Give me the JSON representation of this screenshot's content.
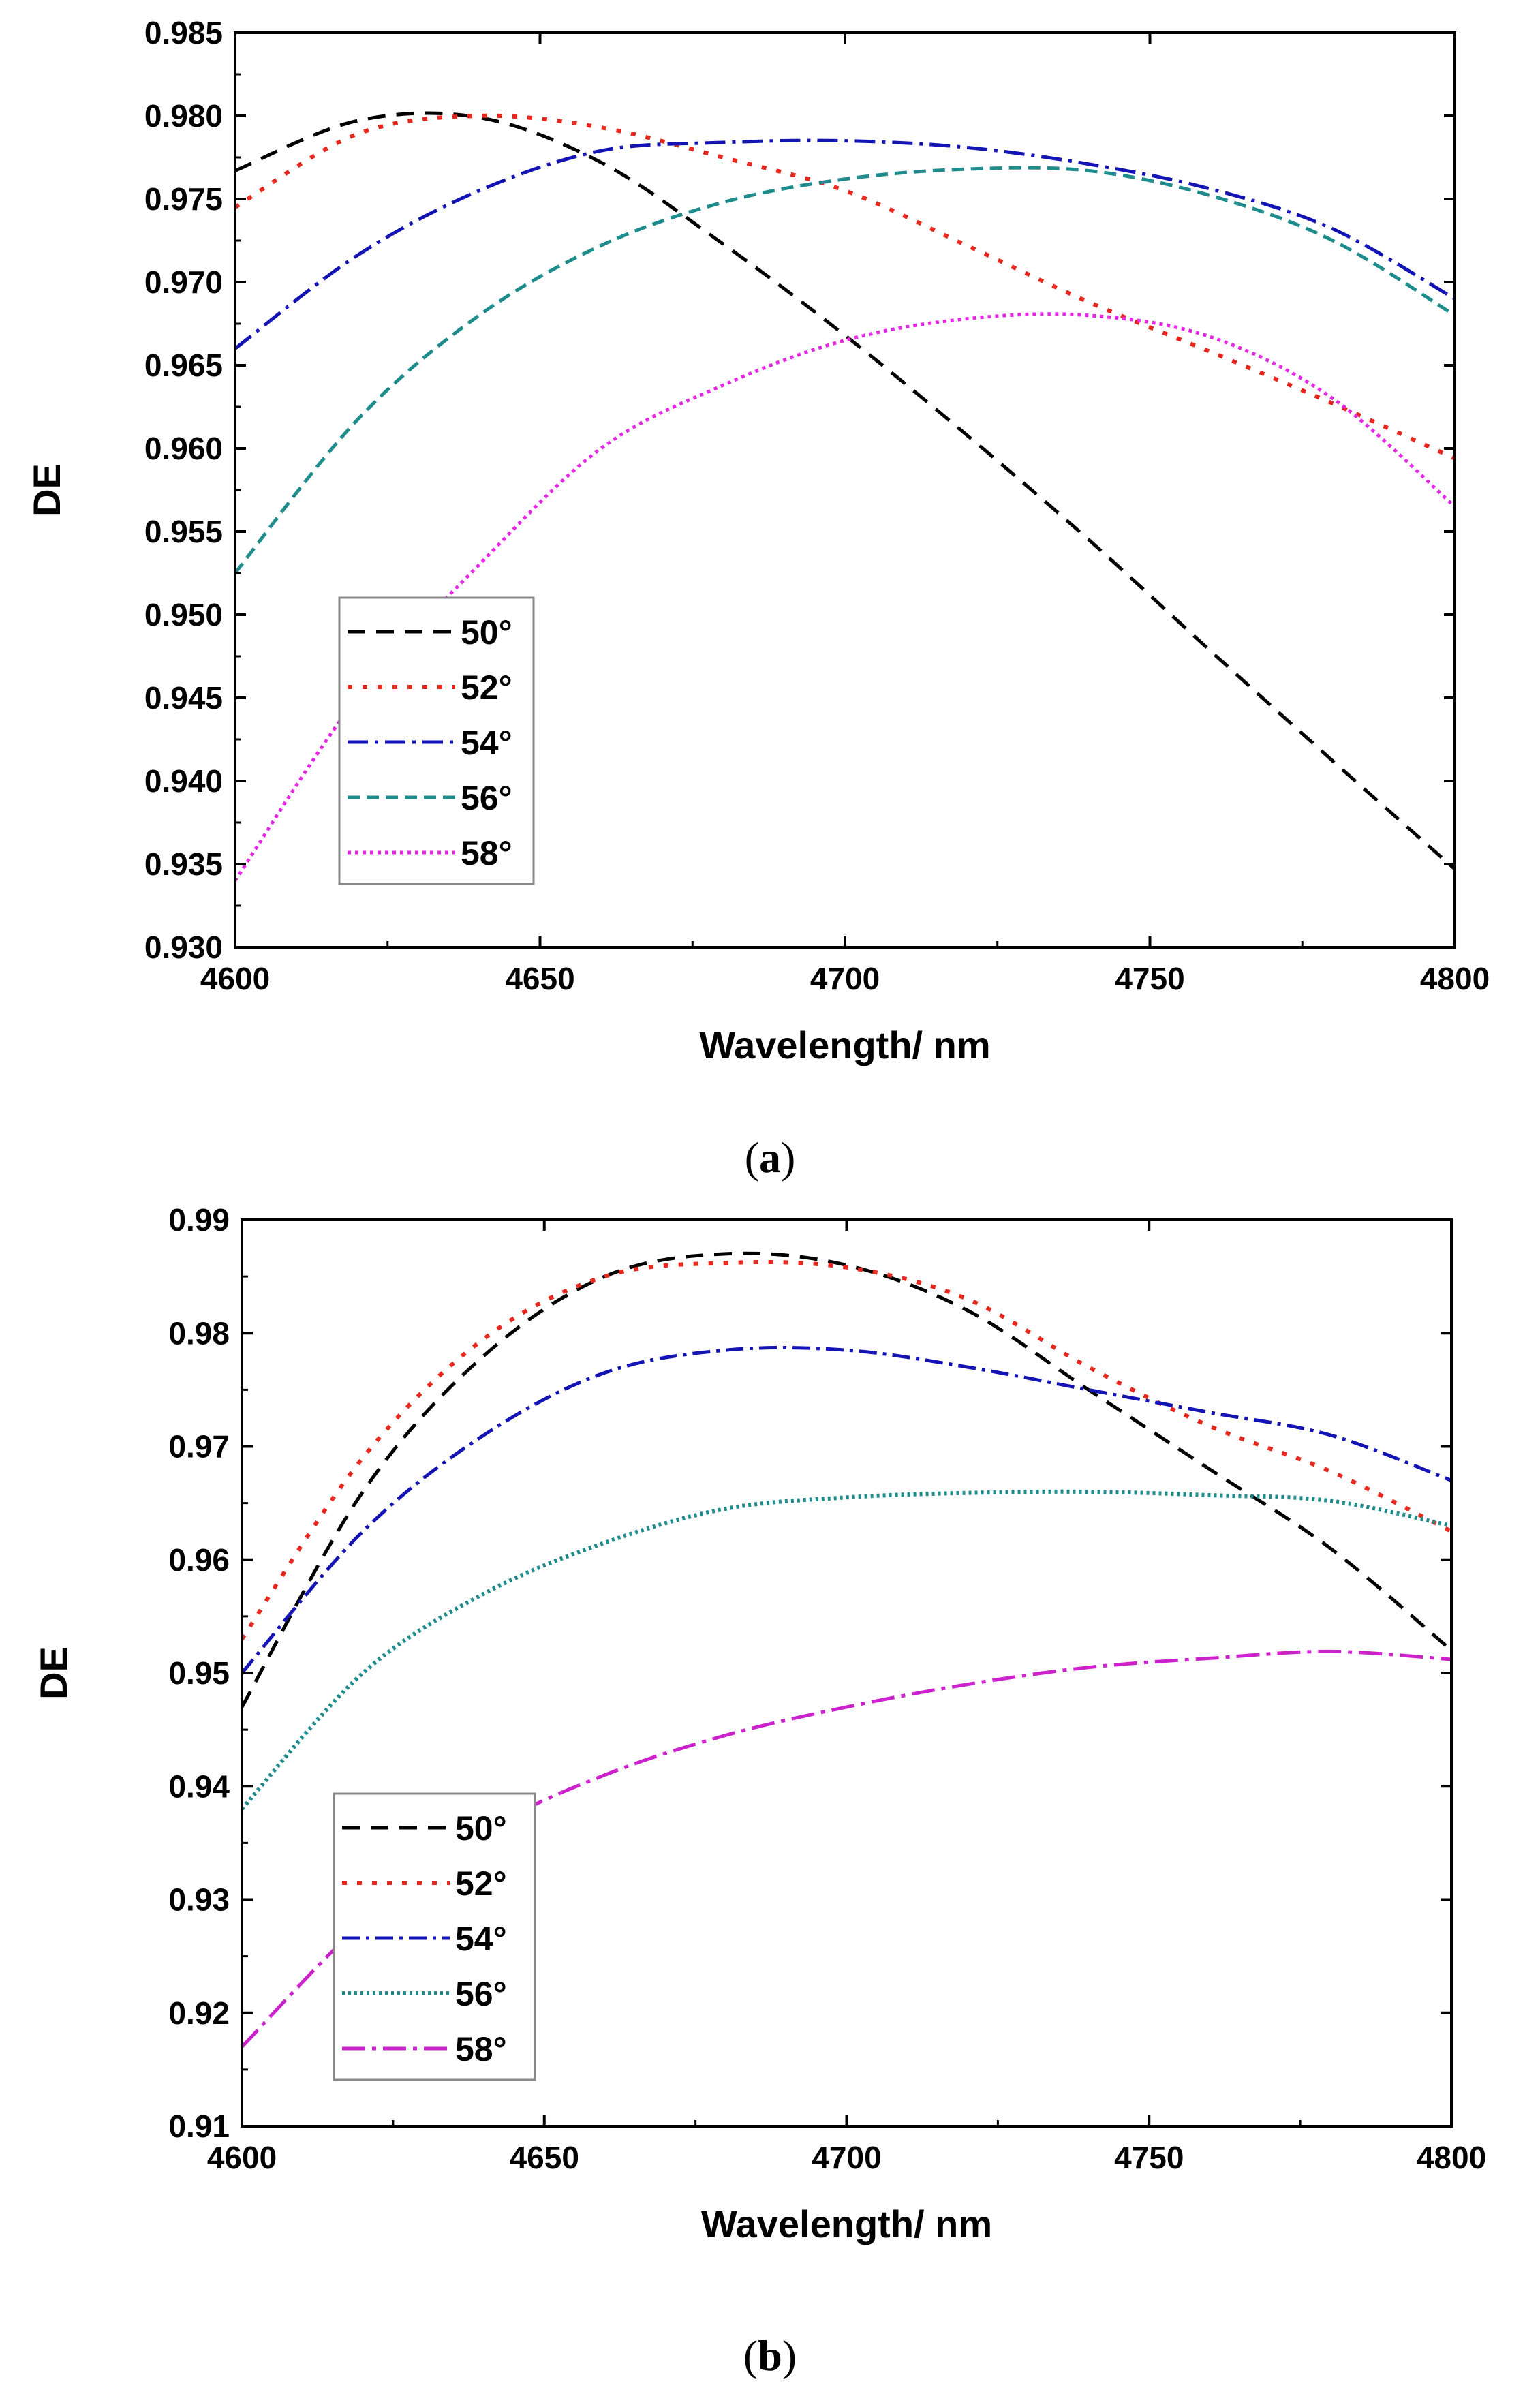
{
  "chart_data": [
    {
      "type": "line",
      "panel": "a",
      "caption_letter": "a",
      "title": "",
      "xlabel": "Wavelength/ nm",
      "ylabel": "DE",
      "xlim": [
        4600,
        4800
      ],
      "ylim": [
        0.93,
        0.985
      ],
      "xticks": [
        4600,
        4650,
        4700,
        4750,
        4800
      ],
      "xtick_labels": [
        "4600",
        "4650",
        "4700",
        "4750",
        "4800"
      ],
      "yticks": [
        0.93,
        0.935,
        0.94,
        0.945,
        0.95,
        0.955,
        0.96,
        0.965,
        0.97,
        0.975,
        0.98,
        0.985
      ],
      "ytick_labels": [
        "0.930",
        "0.935",
        "0.940",
        "0.945",
        "0.950",
        "0.955",
        "0.960",
        "0.965",
        "0.970",
        "0.975",
        "0.980",
        "0.985"
      ],
      "grid": false,
      "legend_position": "bottom-left",
      "x": [
        4600,
        4620,
        4640,
        4660,
        4680,
        4700,
        4720,
        4740,
        4760,
        4780,
        4800
      ],
      "series": [
        {
          "name": "50°",
          "color": "#000000",
          "dash": "26,16",
          "width": 5,
          "values": [
            0.9767,
            0.9797,
            0.9799,
            0.9772,
            0.9723,
            0.9668,
            0.9608,
            0.9545,
            0.9478,
            0.9412,
            0.9347
          ]
        },
        {
          "name": "52°",
          "color": "#e8281e",
          "dash": "7,15",
          "width": 6,
          "values": [
            0.9745,
            0.9789,
            0.98,
            0.9793,
            0.9775,
            0.9755,
            0.9722,
            0.9688,
            0.9658,
            0.9627,
            0.9594
          ]
        },
        {
          "name": "54°",
          "color": "#1414b4",
          "dash": "30,10,5,10",
          "width": 5,
          "values": [
            0.966,
            0.9716,
            0.9755,
            0.9779,
            0.9784,
            0.9785,
            0.9781,
            0.9771,
            0.9756,
            0.9732,
            0.969
          ]
        },
        {
          "name": "56°",
          "color": "#1e8c8c",
          "dash": "18,10",
          "width": 5,
          "values": [
            0.9525,
            0.9617,
            0.968,
            0.9722,
            0.9748,
            0.9762,
            0.9768,
            0.9767,
            0.9752,
            0.9725,
            0.968
          ]
        },
        {
          "name": "58°",
          "color": "#e628e6",
          "dash": "5,6",
          "width": 5,
          "values": [
            0.934,
            0.945,
            0.953,
            0.96,
            0.9638,
            0.9665,
            0.9678,
            0.968,
            0.9667,
            0.963,
            0.9565
          ]
        }
      ]
    },
    {
      "type": "line",
      "panel": "b",
      "caption_letter": "b",
      "title": "",
      "xlabel": "Wavelength/ nm",
      "ylabel": "DE",
      "xlim": [
        4600,
        4800
      ],
      "ylim": [
        0.91,
        0.99
      ],
      "xticks": [
        4600,
        4650,
        4700,
        4750,
        4800
      ],
      "xtick_labels": [
        "4600",
        "4650",
        "4700",
        "4750",
        "4800"
      ],
      "yticks": [
        0.91,
        0.92,
        0.93,
        0.94,
        0.95,
        0.96,
        0.97,
        0.98,
        0.99
      ],
      "ytick_labels": [
        "0.91",
        "0.92",
        "0.93",
        "0.94",
        "0.95",
        "0.96",
        "0.97",
        "0.98",
        "0.99"
      ],
      "grid": false,
      "legend_position": "bottom-left",
      "x": [
        4600,
        4620,
        4640,
        4660,
        4680,
        4700,
        4720,
        4740,
        4760,
        4780,
        4800
      ],
      "series": [
        {
          "name": "50°",
          "color": "#000000",
          "dash": "26,16",
          "width": 5,
          "values": [
            0.947,
            0.966,
            0.978,
            0.985,
            0.987,
            0.986,
            0.982,
            0.975,
            0.968,
            0.961,
            0.952
          ]
        },
        {
          "name": "52°",
          "color": "#e8281e",
          "dash": "7,15",
          "width": 6,
          "values": [
            0.953,
            0.969,
            0.9795,
            0.985,
            0.9862,
            0.9858,
            0.983,
            0.977,
            0.9718,
            0.9678,
            0.9625
          ]
        },
        {
          "name": "54°",
          "color": "#1414b4",
          "dash": "26,9,5,9",
          "width": 5,
          "values": [
            0.95,
            0.9625,
            0.971,
            0.9765,
            0.9785,
            0.9785,
            0.977,
            0.975,
            0.973,
            0.971,
            0.967
          ]
        },
        {
          "name": "56°",
          "color": "#1e8c8c",
          "dash": "4,5",
          "width": 6,
          "values": [
            0.938,
            0.95,
            0.957,
            0.9615,
            0.9645,
            0.9655,
            0.9659,
            0.966,
            0.9657,
            0.9652,
            0.963
          ]
        },
        {
          "name": "58°",
          "color": "#cc22cc",
          "dash": "34,10,6,10",
          "width": 5,
          "values": [
            0.917,
            0.928,
            0.936,
            0.941,
            0.9445,
            0.947,
            0.949,
            0.9505,
            0.9513,
            0.9519,
            0.9512
          ]
        }
      ]
    }
  ]
}
